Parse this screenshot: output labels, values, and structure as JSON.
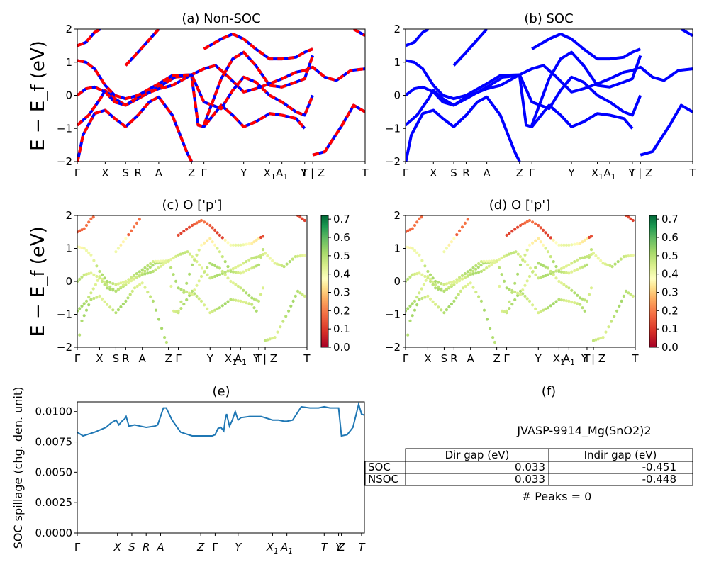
{
  "figure_id": "JVASP-9914_Mg(SnO2)2",
  "ylabel_energy": "E − E_f (eV)",
  "chart_data": [
    {
      "panel": "a",
      "type": "line",
      "title": "(a) Non-SOC",
      "ylabel": "E − E_f (eV)",
      "ylim": [
        -2,
        2
      ],
      "yticks": [
        -2,
        -1,
        0,
        1,
        2
      ],
      "kpath": [
        "Γ",
        "X",
        "S",
        "R",
        "A",
        "Z",
        "Γ",
        "Y",
        "X1",
        "A1",
        "T",
        "Y | Z",
        "T"
      ],
      "kpos": [
        0,
        0.097,
        0.168,
        0.211,
        0.283,
        0.397,
        0.44,
        0.578,
        0.668,
        0.711,
        0.79,
        0.818,
        1.0
      ],
      "colors": {
        "up": "#0000ff",
        "down": "#ff0000"
      },
      "bands": [
        [
          [
            0,
            -2.05
          ],
          [
            0.02,
            -1.2
          ],
          [
            0.06,
            -0.55
          ],
          [
            0.097,
            -0.45
          ],
          [
            0.13,
            -0.7
          ],
          [
            0.168,
            -0.95
          ],
          [
            0.211,
            -0.6
          ],
          [
            0.25,
            -0.2
          ],
          [
            0.283,
            -0.05
          ],
          [
            0.33,
            -0.6
          ],
          [
            0.38,
            -1.7
          ],
          [
            0.397,
            -2.0
          ]
        ],
        [
          [
            0,
            -0.9
          ],
          [
            0.04,
            -0.6
          ],
          [
            0.08,
            -0.1
          ],
          [
            0.097,
            0.15
          ],
          [
            0.13,
            -0.1
          ],
          [
            0.168,
            -0.3
          ],
          [
            0.211,
            -0.1
          ],
          [
            0.283,
            0.25
          ],
          [
            0.34,
            0.55
          ],
          [
            0.397,
            0.6
          ],
          [
            0.42,
            -0.9
          ],
          [
            0.44,
            -0.95
          ],
          [
            0.5,
            -0.3
          ],
          [
            0.54,
            -0.6
          ],
          [
            0.578,
            -0.95
          ],
          [
            0.62,
            -0.8
          ],
          [
            0.668,
            -0.55
          ],
          [
            0.711,
            -0.6
          ],
          [
            0.76,
            -0.7
          ],
          [
            0.79,
            -1.0
          ]
        ],
        [
          [
            0,
            0.0
          ],
          [
            0.03,
            0.2
          ],
          [
            0.06,
            0.25
          ],
          [
            0.097,
            0.1
          ],
          [
            0.13,
            -0.2
          ],
          [
            0.168,
            -0.3
          ],
          [
            0.211,
            -0.05
          ],
          [
            0.283,
            0.2
          ],
          [
            0.33,
            0.3
          ],
          [
            0.397,
            0.62
          ],
          [
            0.44,
            0.8
          ],
          [
            0.48,
            0.9
          ],
          [
            0.52,
            0.6
          ],
          [
            0.578,
            0.1
          ],
          [
            0.62,
            0.2
          ],
          [
            0.668,
            0.35
          ],
          [
            0.711,
            0.5
          ],
          [
            0.76,
            0.7
          ],
          [
            0.79,
            0.75
          ],
          [
            0.818,
            0.85
          ],
          [
            0.86,
            0.55
          ],
          [
            0.9,
            0.45
          ],
          [
            0.95,
            0.75
          ],
          [
            1.0,
            0.8
          ]
        ],
        [
          [
            0,
            1.05
          ],
          [
            0.03,
            1.0
          ],
          [
            0.06,
            0.8
          ],
          [
            0.097,
            0.3
          ],
          [
            0.13,
            0.0
          ],
          [
            0.168,
            -0.1
          ],
          [
            0.211,
            0.0
          ],
          [
            0.283,
            0.35
          ],
          [
            0.33,
            0.6
          ],
          [
            0.397,
            0.62
          ],
          [
            0.44,
            -0.2
          ],
          [
            0.5,
            -0.4
          ],
          [
            0.54,
            0.15
          ],
          [
            0.578,
            0.55
          ],
          [
            0.62,
            0.4
          ],
          [
            0.668,
            0.0
          ],
          [
            0.711,
            -0.2
          ],
          [
            0.76,
            -0.5
          ],
          [
            0.79,
            -0.6
          ],
          [
            0.818,
            0.0
          ]
        ],
        [
          [
            0.168,
            0.9
          ],
          [
            0.211,
            1.3
          ],
          [
            0.283,
            2.0
          ]
        ],
        [
          [
            0.44,
            1.4
          ],
          [
            0.5,
            1.7
          ],
          [
            0.54,
            1.85
          ],
          [
            0.578,
            1.7
          ],
          [
            0.62,
            1.4
          ],
          [
            0.668,
            1.1
          ],
          [
            0.711,
            1.1
          ],
          [
            0.76,
            1.15
          ],
          [
            0.79,
            1.3
          ],
          [
            0.818,
            1.4
          ]
        ],
        [
          [
            0,
            1.5
          ],
          [
            0.03,
            1.6
          ],
          [
            0.06,
            1.9
          ],
          [
            0.08,
            2.0
          ]
        ],
        [
          [
            0.44,
            -0.9
          ],
          [
            0.5,
            0.5
          ],
          [
            0.54,
            1.1
          ],
          [
            0.578,
            1.3
          ],
          [
            0.62,
            0.9
          ],
          [
            0.668,
            0.3
          ],
          [
            0.711,
            0.25
          ],
          [
            0.76,
            0.4
          ],
          [
            0.79,
            0.5
          ],
          [
            0.818,
            1.2
          ]
        ],
        [
          [
            0.818,
            -1.8
          ],
          [
            0.86,
            -1.7
          ],
          [
            0.92,
            -0.9
          ],
          [
            0.96,
            -0.3
          ],
          [
            1.0,
            -0.5
          ]
        ],
        [
          [
            0.96,
            2.0
          ],
          [
            0.98,
            1.9
          ],
          [
            1.0,
            1.8
          ]
        ]
      ]
    },
    {
      "panel": "b",
      "type": "line",
      "title": "(b) SOC",
      "ylim": [
        -2,
        2
      ],
      "yticks": [
        -2,
        -1,
        0,
        1,
        2
      ],
      "kpath": [
        "Γ",
        "X",
        "S",
        "R",
        "A",
        "Z",
        "Γ",
        "Y",
        "X1",
        "A1",
        "T",
        "Y | Z",
        "T"
      ],
      "colors": {
        "line": "#0000ff"
      }
    },
    {
      "panel": "c",
      "type": "scatter",
      "title": "(c)  O ['p']",
      "ylabel": "E − E_f (eV)",
      "ylim": [
        -2,
        2
      ],
      "yticks": [
        -2,
        -1,
        0,
        1,
        2
      ],
      "kpath": [
        "Γ",
        "X",
        "S",
        "R",
        "A",
        "Z",
        "Γ",
        "Y",
        "X1",
        "A1",
        "T",
        "Y | Z",
        "T"
      ],
      "colorbar": {
        "min": 0.0,
        "max": 0.72,
        "ticks": [
          "0.0",
          "0.1",
          "0.2",
          "0.3",
          "0.4",
          "0.5",
          "0.6",
          "0.7"
        ],
        "cmap": "RdYlGn"
      }
    },
    {
      "panel": "d",
      "type": "scatter",
      "title": "(d) O ['p']",
      "ylim": [
        -2,
        2
      ],
      "yticks": [
        -2,
        -1,
        0,
        1,
        2
      ],
      "kpath": [
        "Γ",
        "X",
        "S",
        "R",
        "A",
        "Z",
        "Γ",
        "Y",
        "X1",
        "A1",
        "T",
        "Y | Z",
        "T"
      ],
      "colorbar": {
        "min": 0.0,
        "max": 0.72,
        "ticks": [
          "0.0",
          "0.1",
          "0.2",
          "0.3",
          "0.4",
          "0.5",
          "0.6",
          "0.7"
        ],
        "cmap": "RdYlGn"
      }
    },
    {
      "panel": "e",
      "type": "line",
      "title": "(e)",
      "ylabel": "SOC spillage (chg. den. unit)",
      "ylim": [
        0,
        0.0108
      ],
      "yticks": [
        "0.0000",
        "0.0025",
        "0.0050",
        "0.0075",
        "0.0100"
      ],
      "kpath": [
        "Γ",
        "X",
        "S",
        "R",
        "A",
        "Z",
        "Γ",
        "Y",
        "X1",
        "A1",
        "T",
        "Y",
        "Z",
        "T"
      ],
      "color": "#1f77b4",
      "x": [
        0,
        0.02,
        0.06,
        0.1,
        0.12,
        0.135,
        0.145,
        0.155,
        0.165,
        0.17,
        0.18,
        0.2,
        0.22,
        0.24,
        0.27,
        0.28,
        0.3,
        0.31,
        0.33,
        0.36,
        0.4,
        0.43,
        0.47,
        0.48,
        0.49,
        0.5,
        0.51,
        0.515,
        0.52,
        0.53,
        0.54,
        0.55,
        0.56,
        0.57,
        0.6,
        0.64,
        0.68,
        0.7,
        0.72,
        0.73,
        0.75,
        0.78,
        0.81,
        0.84,
        0.86,
        0.88,
        0.91,
        0.92,
        0.94,
        0.96,
        0.98,
        0.99,
        1.0
      ],
      "y": [
        0.0083,
        0.008,
        0.0083,
        0.0087,
        0.0091,
        0.0093,
        0.0089,
        0.0092,
        0.0094,
        0.0096,
        0.0088,
        0.0089,
        0.0088,
        0.0087,
        0.0088,
        0.0089,
        0.0103,
        0.0103,
        0.0093,
        0.0083,
        0.008,
        0.008,
        0.008,
        0.0081,
        0.0086,
        0.0087,
        0.0084,
        0.0093,
        0.0098,
        0.0088,
        0.0093,
        0.01,
        0.0093,
        0.0095,
        0.0096,
        0.0096,
        0.0093,
        0.0093,
        0.0092,
        0.0092,
        0.0093,
        0.0104,
        0.0103,
        0.0103,
        0.0104,
        0.0103,
        0.0103,
        0.008,
        0.0081,
        0.0087,
        0.0106,
        0.0098,
        0.0097
      ]
    }
  ],
  "table": {
    "title": "(f)",
    "material": "JVASP-9914_Mg(SnO2)2",
    "headers": [
      "Dir gap (eV)",
      "Indir gap (eV)"
    ],
    "rows": [
      {
        "label": "SOC",
        "dir": "0.033",
        "indir": "-0.451"
      },
      {
        "label": "NSOC",
        "dir": "0.033",
        "indir": "-0.448"
      }
    ],
    "peaks": "# Peaks = 0"
  }
}
